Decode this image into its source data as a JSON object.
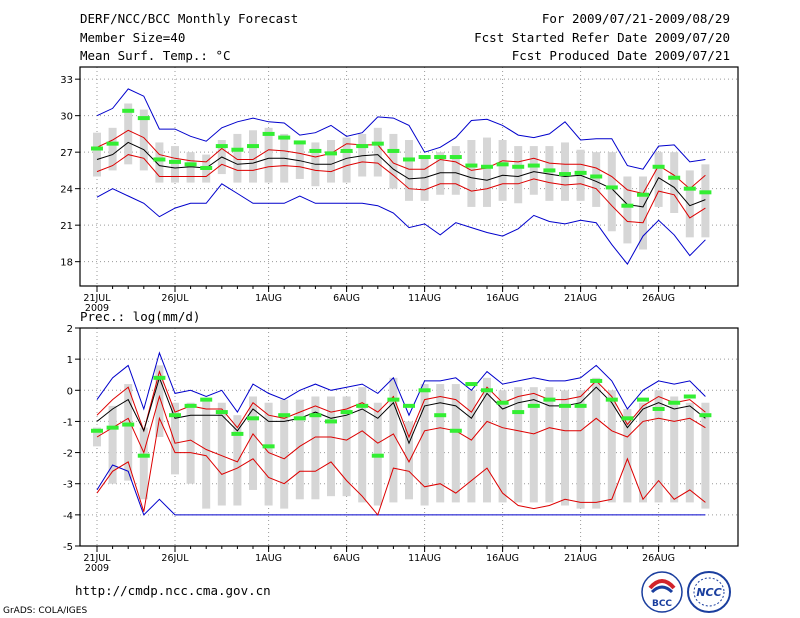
{
  "header": {
    "title": "DERF/NCC/BCC Monthly Forecast",
    "member_size": "Member Size=40",
    "variable": "Mean Surf. Temp.: °C",
    "period": "For 2009/07/21-2009/08/29",
    "start_date": "Fcst Started Refer Date 2009/07/20",
    "produced_date": "Fcst Produced Date 2009/07/21"
  },
  "footer": {
    "url": "http://cmdp.ncc.cma.gov.cn",
    "credit": "GrADS: COLA/IGES",
    "logo_left_text": "BCC",
    "logo_right_text": "NCC"
  },
  "colors": {
    "max_min": "#0000cc",
    "spread": "#dd0000",
    "mean": "#000000",
    "obs": "#33ee33",
    "box": "#d6d6d6"
  },
  "chart_data": [
    {
      "type": "line",
      "title": "Mean Surf. Temp.: °C",
      "ylim": [
        16,
        34
      ],
      "yticks": [
        18,
        21,
        24,
        27,
        30,
        33
      ],
      "xtick_days": [
        0,
        5,
        11,
        16,
        21,
        26,
        31,
        36
      ],
      "xtick_labels": [
        "21JUL",
        "26JUL",
        "1AUG",
        "6AUG",
        "11AUG",
        "16AUG",
        "21AUG",
        "26AUG"
      ],
      "x_first_year": "2009",
      "days": 40,
      "series": [
        {
          "name": "max",
          "values": [
            30.0,
            30.6,
            32.2,
            31.6,
            28.9,
            28.9,
            28.3,
            27.9,
            29.0,
            29.5,
            29.8,
            29.5,
            29.4,
            28.4,
            28.6,
            29.2,
            28.3,
            28.6,
            29.9,
            29.8,
            29.2,
            27.0,
            27.4,
            28.2,
            29.6,
            29.7,
            29.2,
            28.4,
            28.2,
            28.5,
            29.5,
            28.0,
            28.1,
            28.1,
            25.9,
            25.6,
            27.5,
            27.6,
            26.2,
            26.4
          ]
        },
        {
          "name": "upper",
          "values": [
            27.4,
            28.0,
            28.8,
            28.2,
            26.8,
            26.5,
            26.3,
            26.2,
            27.3,
            26.4,
            26.4,
            27.2,
            27.1,
            26.9,
            26.6,
            26.9,
            27.7,
            27.6,
            27.6,
            26.1,
            25.6,
            25.6,
            26.4,
            26.2,
            25.5,
            25.7,
            26.3,
            26.2,
            26.5,
            26.1,
            26.0,
            26.0,
            25.7,
            25.0,
            23.9,
            23.6,
            25.9,
            25.1,
            24.0,
            25.1
          ]
        },
        {
          "name": "mean",
          "values": [
            26.4,
            26.8,
            27.8,
            27.2,
            25.9,
            25.7,
            25.8,
            25.7,
            26.6,
            26.0,
            26.1,
            26.5,
            26.5,
            26.3,
            26.0,
            26.0,
            26.5,
            26.7,
            26.8,
            25.6,
            24.8,
            24.9,
            25.3,
            25.3,
            24.9,
            24.7,
            25.1,
            25.0,
            25.4,
            25.2,
            25.0,
            25.1,
            24.6,
            24.0,
            22.7,
            22.5,
            24.9,
            24.1,
            22.6,
            23.1
          ]
        },
        {
          "name": "lower",
          "values": [
            25.4,
            25.9,
            26.8,
            26.5,
            25.0,
            25.0,
            25.0,
            25.0,
            26.0,
            25.5,
            25.5,
            25.8,
            25.9,
            25.8,
            25.5,
            25.4,
            25.9,
            26.2,
            26.1,
            25.1,
            24.0,
            23.9,
            24.4,
            24.4,
            23.8,
            24.0,
            24.4,
            24.4,
            24.8,
            24.5,
            24.3,
            24.4,
            24.0,
            22.6,
            21.3,
            21.2,
            23.8,
            23.5,
            21.6,
            22.4
          ]
        },
        {
          "name": "min",
          "values": [
            23.3,
            24.0,
            23.4,
            22.8,
            21.7,
            22.4,
            22.8,
            22.8,
            24.4,
            23.6,
            22.8,
            22.8,
            22.8,
            23.4,
            22.8,
            22.8,
            22.8,
            22.8,
            22.6,
            22.0,
            20.8,
            21.1,
            20.2,
            21.2,
            20.8,
            20.4,
            20.1,
            20.7,
            21.8,
            21.3,
            21.1,
            21.4,
            21.2,
            19.4,
            17.8,
            20.1,
            21.4,
            20.2,
            18.5,
            19.8
          ]
        },
        {
          "name": "box_top",
          "values": [
            28.6,
            29.0,
            31.0,
            30.5,
            27.8,
            27.5,
            27.0,
            26.8,
            28.0,
            28.5,
            28.8,
            29.0,
            28.5,
            27.8,
            27.8,
            28.0,
            28.2,
            28.5,
            29.0,
            28.5,
            28.0,
            26.5,
            27.0,
            27.5,
            28.0,
            28.2,
            28.0,
            27.5,
            27.5,
            27.5,
            27.8,
            27.2,
            27.0,
            27.0,
            25.0,
            25.0,
            27.0,
            27.0,
            25.5,
            26.0
          ]
        },
        {
          "name": "box_bottom",
          "values": [
            25.0,
            25.5,
            26.0,
            25.5,
            24.5,
            24.5,
            24.5,
            24.5,
            25.2,
            24.5,
            24.5,
            24.5,
            24.5,
            24.8,
            24.2,
            24.5,
            24.5,
            25.0,
            25.0,
            24.0,
            23.0,
            23.0,
            23.5,
            23.5,
            22.5,
            22.5,
            23.0,
            22.8,
            23.5,
            23.0,
            23.0,
            23.0,
            22.5,
            20.5,
            19.5,
            19.0,
            22.5,
            22.0,
            20.0,
            20.0
          ]
        },
        {
          "name": "observed",
          "values": [
            27.3,
            27.7,
            30.4,
            29.8,
            26.4,
            26.2,
            26.0,
            25.7,
            27.5,
            27.2,
            27.5,
            28.5,
            28.2,
            27.8,
            27.1,
            26.9,
            27.1,
            27.5,
            27.7,
            27.1,
            26.4,
            26.6,
            26.6,
            26.6,
            25.9,
            25.8,
            26.0,
            25.8,
            25.9,
            25.5,
            25.2,
            25.3,
            25.0,
            24.1,
            22.6,
            23.5,
            25.8,
            24.9,
            24.0,
            23.7
          ]
        }
      ]
    },
    {
      "type": "line",
      "title": "Prec.: log(mm/d)",
      "ylim": [
        -5,
        2
      ],
      "yticks": [
        -5,
        -4,
        -3,
        -2,
        -1,
        0,
        1,
        2
      ],
      "xtick_days": [
        0,
        5,
        11,
        16,
        21,
        26,
        31,
        36
      ],
      "xtick_labels": [
        "21JUL",
        "26JUL",
        "1AUG",
        "6AUG",
        "11AUG",
        "16AUG",
        "21AUG",
        "26AUG"
      ],
      "x_first_year": "2009",
      "days": 40,
      "series": [
        {
          "name": "max",
          "values": [
            -0.3,
            0.4,
            0.8,
            -0.6,
            1.2,
            -0.1,
            0.0,
            -0.2,
            0.0,
            -0.7,
            0.2,
            -0.1,
            -0.3,
            0.0,
            0.2,
            0.0,
            0.1,
            0.2,
            -0.1,
            0.4,
            -0.8,
            0.3,
            0.3,
            0.4,
            0.0,
            0.6,
            0.2,
            0.3,
            0.4,
            0.3,
            0.3,
            0.4,
            0.8,
            0.3,
            -0.6,
            0.0,
            0.3,
            0.2,
            0.3,
            -0.2
          ]
        },
        {
          "name": "upper",
          "values": [
            -0.8,
            -0.3,
            0.1,
            -1.3,
            0.6,
            -0.7,
            -0.5,
            -0.6,
            -0.6,
            -1.2,
            -0.4,
            -0.8,
            -0.9,
            -0.7,
            -0.5,
            -0.7,
            -0.6,
            -0.4,
            -0.7,
            -0.2,
            -1.5,
            -0.3,
            -0.2,
            -0.3,
            -0.7,
            0.1,
            -0.4,
            -0.2,
            -0.1,
            -0.3,
            -0.3,
            -0.2,
            0.3,
            -0.2,
            -1.1,
            -0.5,
            -0.2,
            -0.4,
            -0.3,
            -0.7
          ]
        },
        {
          "name": "mean",
          "values": [
            -1.0,
            -0.6,
            -0.3,
            -1.3,
            0.4,
            -0.9,
            -0.8,
            -0.8,
            -0.8,
            -1.3,
            -0.6,
            -1.0,
            -1.0,
            -0.9,
            -0.7,
            -0.9,
            -0.8,
            -0.6,
            -0.9,
            -0.4,
            -1.7,
            -0.5,
            -0.4,
            -0.5,
            -0.9,
            -0.1,
            -0.6,
            -0.4,
            -0.3,
            -0.5,
            -0.5,
            -0.4,
            0.1,
            -0.4,
            -1.2,
            -0.6,
            -0.4,
            -0.6,
            -0.5,
            -0.9
          ]
        },
        {
          "name": "lower",
          "values": [
            -1.5,
            -1.2,
            -0.9,
            -2.0,
            -0.2,
            -1.7,
            -1.6,
            -1.9,
            -2.1,
            -2.3,
            -1.4,
            -2.0,
            -2.2,
            -1.8,
            -1.5,
            -1.5,
            -1.6,
            -1.3,
            -1.7,
            -1.4,
            -2.3,
            -1.3,
            -1.2,
            -1.3,
            -1.6,
            -1.0,
            -1.2,
            -1.3,
            -1.4,
            -1.2,
            -1.3,
            -1.3,
            -0.9,
            -1.3,
            -1.5,
            -1.0,
            -0.9,
            -1.0,
            -0.9,
            -1.2
          ]
        },
        {
          "name": "deep_red",
          "values": [
            -3.3,
            -2.6,
            -2.3,
            -3.9,
            -0.9,
            -2.0,
            -2.0,
            -2.1,
            -2.7,
            -2.5,
            -2.2,
            -2.8,
            -3.0,
            -2.6,
            -2.6,
            -2.3,
            -2.9,
            -3.4,
            -4.0,
            -2.5,
            -2.6,
            -3.1,
            -3.0,
            -3.3,
            -2.9,
            -2.5,
            -3.3,
            -3.7,
            -3.8,
            -3.7,
            -3.5,
            -3.6,
            -3.6,
            -3.5,
            -2.2,
            -3.5,
            -2.9,
            -3.5,
            -3.2,
            -3.6
          ]
        },
        {
          "name": "min",
          "values": [
            -3.2,
            -2.4,
            -2.6,
            -4.0,
            -3.5,
            -4.0,
            -4.0,
            -4.0,
            -4.0,
            -4.0,
            -4.0,
            -4.0,
            -4.0,
            -4.0,
            -4.0,
            -4.0,
            -4.0,
            -4.0,
            -4.0,
            -4.0,
            -4.0,
            -4.0,
            -4.0,
            -4.0,
            -4.0,
            -4.0,
            -4.0,
            -4.0,
            -4.0,
            -4.0,
            -4.0,
            -4.0,
            -4.0,
            -4.0,
            -4.0,
            -4.0,
            -4.0,
            -4.0,
            -4.0,
            -4.0
          ]
        },
        {
          "name": "box_top",
          "values": [
            -1.2,
            -0.5,
            0.2,
            -1.2,
            0.8,
            -0.4,
            -0.4,
            -0.3,
            -0.4,
            -0.8,
            -0.2,
            -0.4,
            -0.3,
            -0.3,
            -0.2,
            -0.2,
            -0.2,
            0.1,
            -0.4,
            0.4,
            -1.0,
            0.2,
            0.2,
            0.2,
            0.0,
            0.4,
            0.0,
            0.1,
            0.1,
            0.1,
            0.0,
            0.0,
            0.4,
            0.0,
            -0.6,
            -0.4,
            0.0,
            -0.2,
            -0.4,
            -0.4
          ]
        },
        {
          "name": "box_bottom",
          "values": [
            -1.8,
            -3.0,
            -2.9,
            -3.5,
            -1.5,
            -2.7,
            -3.0,
            -3.8,
            -3.7,
            -3.7,
            -3.2,
            -3.7,
            -3.8,
            -3.5,
            -3.5,
            -3.4,
            -3.4,
            -3.6,
            -3.7,
            -3.6,
            -3.5,
            -3.7,
            -3.6,
            -3.6,
            -3.6,
            -3.6,
            -3.6,
            -3.6,
            -3.6,
            -3.6,
            -3.7,
            -3.8,
            -3.8,
            -3.6,
            -3.6,
            -3.6,
            -3.6,
            -3.6,
            -3.6,
            -3.8
          ]
        },
        {
          "name": "observed",
          "values": [
            -1.3,
            -1.2,
            -1.1,
            -2.1,
            0.4,
            -0.8,
            -0.5,
            -0.3,
            -0.7,
            -1.4,
            -0.9,
            -1.8,
            -0.8,
            -0.9,
            -0.8,
            -1.0,
            -0.7,
            -0.5,
            -2.1,
            -0.3,
            -0.5,
            0.0,
            -0.8,
            -1.3,
            0.2,
            0.0,
            -0.4,
            -0.7,
            -0.5,
            -0.3,
            -0.5,
            -0.5,
            0.3,
            -0.3,
            -0.9,
            -0.3,
            -0.6,
            -0.4,
            -0.2,
            -0.8
          ]
        }
      ]
    }
  ]
}
